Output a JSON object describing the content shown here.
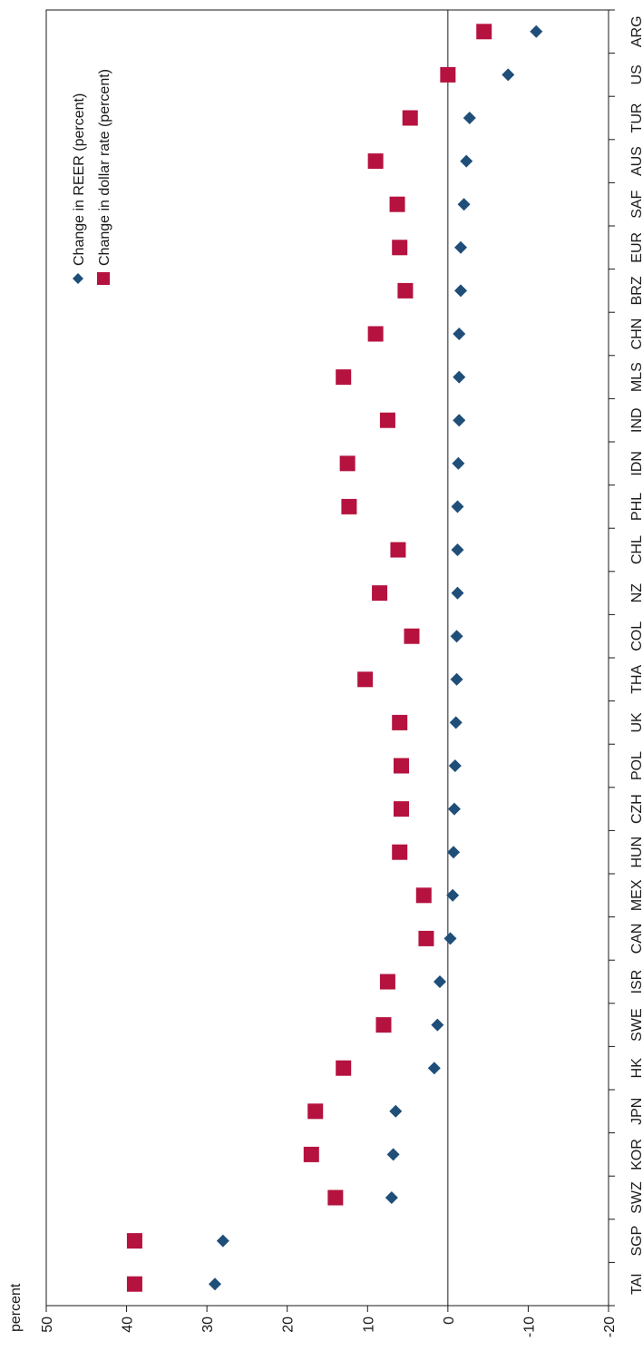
{
  "chart_data": {
    "type": "scatter",
    "ylabel": "percent",
    "ylim": [
      -20,
      50
    ],
    "yticks": [
      50,
      40,
      30,
      20,
      10,
      0,
      -10,
      -20
    ],
    "ytick_labels": [
      "50",
      "40",
      "30",
      "20",
      "10",
      "0",
      "-10",
      "-20"
    ],
    "categories": [
      "TAI",
      "SGP",
      "SWZ",
      "KOR",
      "JPN",
      "HK",
      "SWE",
      "ISR",
      "CAN",
      "MEX",
      "HUN",
      "CZH",
      "POL",
      "UK",
      "THA",
      "COL",
      "NZ",
      "CHL",
      "PHL",
      "IDN",
      "IND",
      "MLS",
      "CHN",
      "BRZ",
      "EUR",
      "SAF",
      "AUS",
      "TUR",
      "US",
      "ARG"
    ],
    "series": [
      {
        "name": "Change in REER (percent)",
        "marker": "diamond",
        "color": "#1f4e79",
        "values": [
          29,
          28,
          7,
          6.8,
          6.5,
          1.7,
          1.3,
          1,
          -0.3,
          -0.6,
          -0.7,
          -0.8,
          -0.9,
          -1,
          -1.1,
          -1.1,
          -1.2,
          -1.2,
          -1.2,
          -1.3,
          -1.4,
          -1.4,
          -1.4,
          -1.6,
          -1.6,
          -2,
          -2.3,
          -2.7,
          -7.5,
          -11
        ]
      },
      {
        "name": "Change in dollar rate (percent)",
        "marker": "square",
        "color": "#b5123f",
        "values": [
          39,
          39,
          14,
          17,
          16.5,
          13,
          8,
          7.5,
          2.7,
          3,
          6,
          5.8,
          5.8,
          6,
          10.3,
          4.5,
          8.5,
          6.2,
          12.3,
          12.5,
          7.5,
          13,
          9,
          5.3,
          6,
          6.3,
          9,
          4.7,
          0,
          -4.5
        ]
      }
    ],
    "legend_position": "top-left",
    "grid": false
  }
}
